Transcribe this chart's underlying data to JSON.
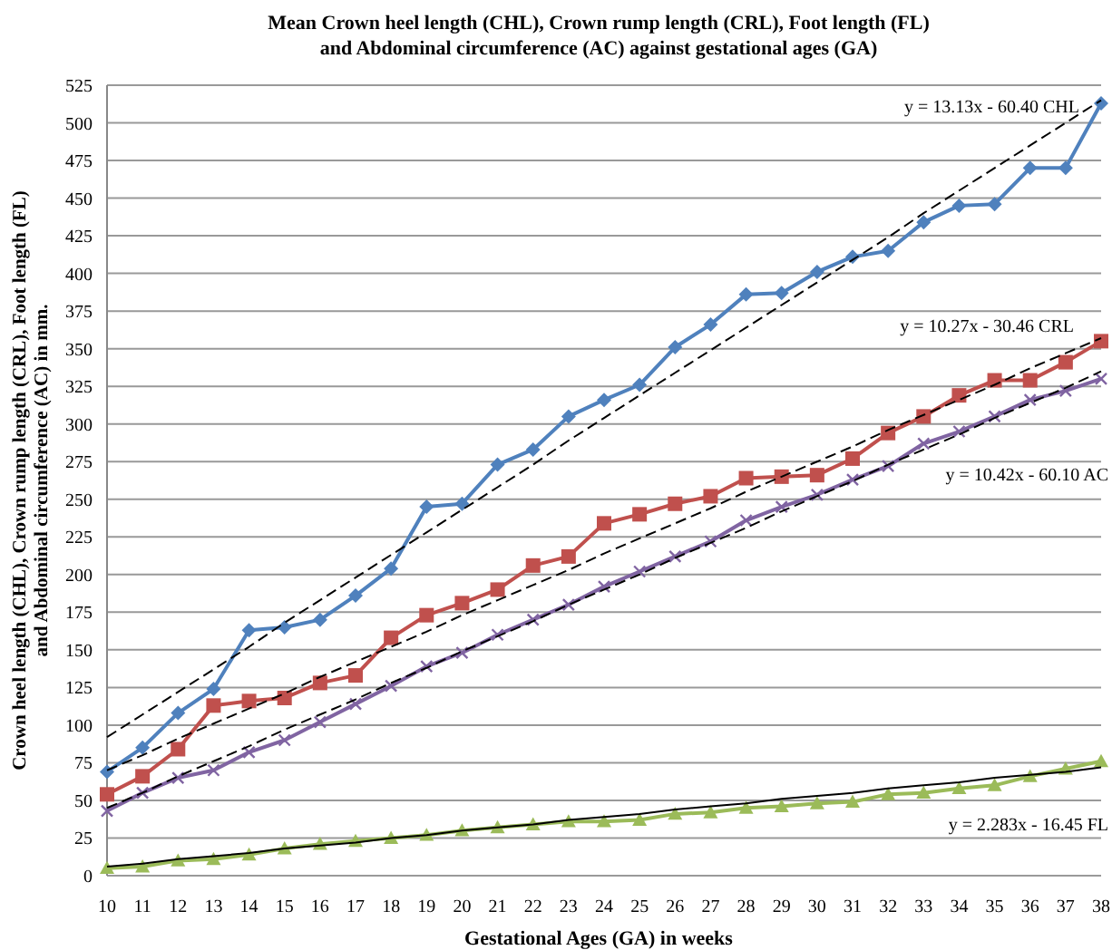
{
  "chart_data": {
    "type": "line",
    "title": "Mean Crown heel length (CHL), Crown rump length (CRL), Foot length (FL)\nand Abdominal circumference (AC) against gestational ages (GA)",
    "xlabel": "Gestational Ages (GA) in weeks",
    "ylabel": "Crown heel length (CHL), Crown rump length (CRL), Foot length (FL)\nand Abdominal circumference (AC)  in mm.",
    "x": [
      10,
      11,
      12,
      13,
      14,
      15,
      16,
      17,
      18,
      19,
      20,
      21,
      22,
      23,
      24,
      25,
      26,
      27,
      28,
      29,
      30,
      31,
      32,
      33,
      34,
      35,
      36,
      37,
      38
    ],
    "series": [
      {
        "color": "#4f81bd",
        "marker": "diamond",
        "values": [
          69,
          85,
          108,
          124,
          163,
          165,
          170,
          186,
          204,
          245,
          247,
          273,
          283,
          305,
          316,
          326,
          351,
          366,
          386,
          387,
          401,
          411,
          415,
          434,
          445,
          446,
          470,
          470,
          513
        ]
      },
      {
        "color": "#c0504d",
        "marker": "square",
        "values": [
          54,
          66,
          84,
          113,
          116,
          118,
          128,
          133,
          158,
          173,
          181,
          190,
          206,
          212,
          234,
          240,
          247,
          252,
          264,
          265,
          266,
          277,
          294,
          305,
          319,
          329,
          329,
          341,
          355
        ]
      },
      {
        "color": "#8064a2",
        "marker": "cross",
        "values": [
          43,
          55,
          65,
          70,
          82,
          90,
          102,
          114,
          126,
          139,
          148,
          160,
          170,
          180,
          192,
          202,
          212,
          222,
          236,
          245,
          253,
          263,
          272,
          287,
          295,
          305,
          316,
          322,
          330
        ]
      },
      {
        "color": "#9bbb59",
        "marker": "triangle",
        "values": [
          5,
          6,
          10,
          11,
          14,
          18,
          21,
          23,
          25,
          27,
          30,
          32,
          34,
          36,
          36,
          37,
          41,
          42,
          45,
          46,
          48,
          49,
          54,
          55,
          58,
          60,
          66,
          71,
          76
        ]
      },
      {
        "color": "#000000",
        "marker": "none",
        "line_style": "dashed",
        "values": [
          92,
          107,
          122,
          137,
          152,
          168,
          183,
          198,
          213,
          228,
          243,
          258,
          273,
          289,
          304,
          319,
          334,
          349,
          364,
          379,
          394,
          409,
          424,
          440,
          455,
          470,
          485,
          500,
          515
        ]
      },
      {
        "color": "#000000",
        "marker": "none",
        "line_style": "dashed",
        "values": [
          70,
          80,
          91,
          101,
          111,
          121,
          132,
          142,
          152,
          162,
          173,
          183,
          193,
          203,
          214,
          224,
          234,
          244,
          255,
          265,
          275,
          285,
          296,
          306,
          316,
          326,
          337,
          347,
          357
        ]
      },
      {
        "color": "#000000",
        "marker": "none",
        "line_style": "dashed",
        "values": [
          45,
          55,
          66,
          76,
          86,
          97,
          107,
          117,
          128,
          138,
          149,
          159,
          169,
          180,
          190,
          200,
          211,
          221,
          231,
          242,
          252,
          262,
          273,
          283,
          293,
          304,
          314,
          324,
          335
        ]
      },
      {
        "color": "#000000",
        "marker": "none",
        "line_style": "solid",
        "values": [
          6,
          8,
          11,
          13,
          15,
          18,
          20,
          22,
          25,
          27,
          30,
          32,
          34,
          37,
          39,
          41,
          44,
          46,
          48,
          51,
          53,
          55,
          58,
          60,
          62,
          65,
          67,
          69,
          72
        ]
      }
    ],
    "annotations": [
      "y = 13.13x - 60.40 CHL",
      "y = 10.27x - 30.46 CRL",
      "y = 10.42x - 60.10 AC",
      "y = 2.283x - 16.45   FL"
    ],
    "xlim": [
      10,
      38
    ],
    "xticks": [
      10,
      11,
      12,
      13,
      14,
      15,
      16,
      17,
      18,
      19,
      20,
      21,
      22,
      23,
      24,
      25,
      26,
      27,
      28,
      29,
      30,
      31,
      32,
      33,
      34,
      35,
      36,
      37,
      38
    ],
    "ylim": [
      0,
      525
    ],
    "yticks": [
      0,
      25,
      50,
      75,
      100,
      125,
      150,
      175,
      200,
      225,
      250,
      275,
      300,
      325,
      350,
      375,
      400,
      425,
      450,
      475,
      500,
      525
    ],
    "grid": "y"
  }
}
